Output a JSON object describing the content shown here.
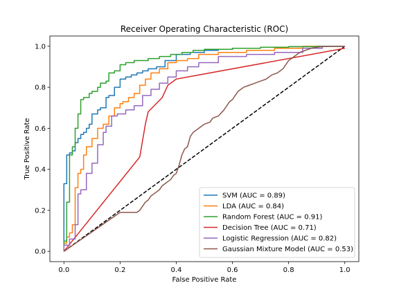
{
  "chart_data": {
    "type": "line",
    "title": "Receiver Operating Characteristic (ROC)",
    "xlabel": "False Positive Rate",
    "ylabel": "True Positive Rate",
    "xlim": [
      -0.05,
      1.05
    ],
    "ylim": [
      -0.05,
      1.05
    ],
    "xticks": [
      0.0,
      0.2,
      0.4,
      0.6,
      0.8,
      1.0
    ],
    "yticks": [
      0.0,
      0.2,
      0.4,
      0.6,
      0.8,
      1.0
    ],
    "xtick_labels": [
      "0.0",
      "0.2",
      "0.4",
      "0.6",
      "0.8",
      "1.0"
    ],
    "ytick_labels": [
      "0.0",
      "0.2",
      "0.4",
      "0.6",
      "0.8",
      "1.0"
    ],
    "legend_position": "lower-right",
    "grid": false,
    "diagonal": {
      "x": [
        0,
        1
      ],
      "y": [
        0,
        1
      ],
      "color": "#000000",
      "style": "dashed"
    },
    "series": [
      {
        "name": "SVM (AUC = 0.89)",
        "color": "#1f77b4",
        "x": [
          0.0,
          0.0,
          0.01,
          0.01,
          0.02,
          0.02,
          0.03,
          0.03,
          0.04,
          0.04,
          0.05,
          0.05,
          0.06,
          0.06,
          0.07,
          0.07,
          0.08,
          0.08,
          0.09,
          0.09,
          0.1,
          0.1,
          0.12,
          0.12,
          0.13,
          0.13,
          0.15,
          0.15,
          0.16,
          0.16,
          0.18,
          0.18,
          0.2,
          0.2,
          0.22,
          0.22,
          0.24,
          0.24,
          0.26,
          0.26,
          0.28,
          0.28,
          0.3,
          0.3,
          0.33,
          0.33,
          0.36,
          0.36,
          0.4,
          0.4,
          0.45,
          0.45,
          0.5,
          0.5,
          0.55,
          0.55,
          0.6,
          0.6,
          0.7,
          0.7,
          0.8,
          0.8,
          0.9,
          0.9,
          1.0
        ],
        "y": [
          0.0,
          0.33,
          0.33,
          0.47,
          0.47,
          0.48,
          0.48,
          0.49,
          0.49,
          0.53,
          0.53,
          0.55,
          0.55,
          0.57,
          0.57,
          0.58,
          0.58,
          0.6,
          0.6,
          0.62,
          0.62,
          0.67,
          0.67,
          0.69,
          0.69,
          0.7,
          0.7,
          0.75,
          0.75,
          0.76,
          0.76,
          0.8,
          0.8,
          0.84,
          0.84,
          0.85,
          0.85,
          0.86,
          0.86,
          0.87,
          0.87,
          0.88,
          0.88,
          0.89,
          0.89,
          0.9,
          0.9,
          0.93,
          0.93,
          0.96,
          0.96,
          0.97,
          0.97,
          0.98,
          0.98,
          0.985,
          0.985,
          0.99,
          0.99,
          0.995,
          0.995,
          0.998,
          0.998,
          1.0,
          1.0
        ]
      },
      {
        "name": "LDA (AUC = 0.84)",
        "color": "#ff7f0e",
        "x": [
          0.0,
          0.0,
          0.01,
          0.01,
          0.02,
          0.02,
          0.03,
          0.03,
          0.04,
          0.04,
          0.05,
          0.05,
          0.06,
          0.06,
          0.07,
          0.07,
          0.08,
          0.08,
          0.1,
          0.1,
          0.12,
          0.12,
          0.14,
          0.14,
          0.16,
          0.16,
          0.18,
          0.18,
          0.2,
          0.2,
          0.21,
          0.21,
          0.23,
          0.23,
          0.25,
          0.25,
          0.27,
          0.27,
          0.29,
          0.29,
          0.31,
          0.31,
          0.34,
          0.34,
          0.37,
          0.37,
          0.4,
          0.4,
          0.44,
          0.44,
          0.48,
          0.48,
          0.55,
          0.55,
          0.65,
          0.65,
          0.75,
          0.75,
          0.85,
          0.85,
          1.0
        ],
        "y": [
          0.0,
          0.04,
          0.04,
          0.07,
          0.07,
          0.09,
          0.09,
          0.13,
          0.13,
          0.31,
          0.31,
          0.38,
          0.38,
          0.4,
          0.4,
          0.47,
          0.47,
          0.51,
          0.51,
          0.55,
          0.55,
          0.6,
          0.6,
          0.62,
          0.62,
          0.66,
          0.66,
          0.7,
          0.7,
          0.72,
          0.72,
          0.73,
          0.73,
          0.75,
          0.75,
          0.77,
          0.77,
          0.81,
          0.81,
          0.84,
          0.84,
          0.87,
          0.87,
          0.89,
          0.89,
          0.92,
          0.92,
          0.93,
          0.93,
          0.94,
          0.94,
          0.96,
          0.96,
          0.97,
          0.97,
          0.98,
          0.98,
          0.99,
          0.99,
          1.0,
          1.0
        ]
      },
      {
        "name": "Random Forest (AUC = 0.91)",
        "color": "#2ca02c",
        "x": [
          0.0,
          0.0,
          0.01,
          0.01,
          0.02,
          0.02,
          0.03,
          0.03,
          0.04,
          0.04,
          0.05,
          0.05,
          0.06,
          0.06,
          0.07,
          0.07,
          0.09,
          0.09,
          0.1,
          0.1,
          0.12,
          0.12,
          0.13,
          0.13,
          0.15,
          0.15,
          0.16,
          0.16,
          0.18,
          0.18,
          0.2,
          0.2,
          0.22,
          0.22,
          0.25,
          0.25,
          0.3,
          0.3,
          0.34,
          0.34,
          0.38,
          0.38,
          0.42,
          0.42,
          0.46,
          0.46,
          0.5,
          0.5,
          0.6,
          0.6,
          0.7,
          0.7,
          0.8,
          0.8,
          0.9,
          0.9,
          1.0
        ],
        "y": [
          0.0,
          0.05,
          0.05,
          0.24,
          0.24,
          0.47,
          0.47,
          0.51,
          0.51,
          0.6,
          0.6,
          0.67,
          0.67,
          0.74,
          0.74,
          0.75,
          0.75,
          0.77,
          0.77,
          0.78,
          0.78,
          0.8,
          0.8,
          0.82,
          0.82,
          0.83,
          0.83,
          0.87,
          0.87,
          0.88,
          0.88,
          0.91,
          0.91,
          0.92,
          0.92,
          0.93,
          0.93,
          0.94,
          0.94,
          0.95,
          0.95,
          0.96,
          0.96,
          0.97,
          0.97,
          0.98,
          0.98,
          0.985,
          0.985,
          0.99,
          0.99,
          0.995,
          0.995,
          0.998,
          0.998,
          1.0,
          1.0
        ]
      },
      {
        "name": "Decision Tree (AUC = 0.71)",
        "color": "#d62728",
        "x": [
          0.0,
          0.27,
          0.29,
          0.3,
          0.35,
          0.37,
          0.4,
          1.0
        ],
        "y": [
          0.0,
          0.46,
          0.62,
          0.68,
          0.75,
          0.81,
          0.84,
          0.99
        ]
      },
      {
        "name": "Logistic Regression (AUC = 0.82)",
        "color": "#9467bd",
        "x": [
          0.0,
          0.0,
          0.02,
          0.02,
          0.04,
          0.04,
          0.05,
          0.05,
          0.06,
          0.06,
          0.08,
          0.08,
          0.1,
          0.1,
          0.12,
          0.12,
          0.14,
          0.14,
          0.15,
          0.15,
          0.17,
          0.17,
          0.19,
          0.19,
          0.22,
          0.22,
          0.25,
          0.25,
          0.28,
          0.28,
          0.31,
          0.31,
          0.34,
          0.34,
          0.37,
          0.37,
          0.4,
          0.4,
          0.44,
          0.44,
          0.48,
          0.48,
          0.55,
          0.55,
          0.65,
          0.65,
          0.75,
          0.75,
          0.85,
          0.85,
          0.92,
          0.92,
          1.0
        ],
        "y": [
          0.0,
          0.03,
          0.03,
          0.06,
          0.06,
          0.13,
          0.13,
          0.28,
          0.28,
          0.3,
          0.3,
          0.38,
          0.38,
          0.43,
          0.43,
          0.52,
          0.52,
          0.58,
          0.58,
          0.61,
          0.61,
          0.66,
          0.66,
          0.67,
          0.67,
          0.69,
          0.69,
          0.71,
          0.71,
          0.76,
          0.76,
          0.79,
          0.79,
          0.82,
          0.82,
          0.85,
          0.85,
          0.88,
          0.88,
          0.9,
          0.9,
          0.92,
          0.92,
          0.95,
          0.95,
          0.96,
          0.96,
          0.97,
          0.97,
          0.99,
          0.99,
          1.0,
          1.0
        ]
      },
      {
        "name": "Gaussian Mixture Model (AUC = 0.53)",
        "color": "#8c564b",
        "x": [
          0.0,
          0.2,
          0.26,
          0.27,
          0.28,
          0.29,
          0.3,
          0.31,
          0.32,
          0.34,
          0.35,
          0.36,
          0.37,
          0.38,
          0.39,
          0.4,
          0.41,
          0.42,
          0.43,
          0.44,
          0.45,
          0.46,
          0.47,
          0.48,
          0.49,
          0.5,
          0.52,
          0.53,
          0.55,
          0.57,
          0.58,
          0.59,
          0.6,
          0.61,
          0.62,
          0.64,
          0.66,
          0.68,
          0.7,
          0.72,
          0.74,
          0.76,
          0.78,
          0.8,
          0.82,
          0.84,
          0.86,
          0.88,
          0.9,
          0.92,
          0.94,
          0.96,
          0.98,
          1.0
        ],
        "y": [
          0.0,
          0.19,
          0.19,
          0.2,
          0.22,
          0.24,
          0.25,
          0.27,
          0.28,
          0.3,
          0.32,
          0.33,
          0.34,
          0.35,
          0.37,
          0.38,
          0.42,
          0.47,
          0.5,
          0.51,
          0.56,
          0.58,
          0.59,
          0.6,
          0.61,
          0.62,
          0.63,
          0.65,
          0.66,
          0.69,
          0.71,
          0.73,
          0.74,
          0.76,
          0.78,
          0.8,
          0.81,
          0.82,
          0.83,
          0.84,
          0.86,
          0.87,
          0.89,
          0.93,
          0.95,
          0.97,
          0.98,
          0.99,
          0.995,
          0.998,
          0.999,
          1.0,
          1.0,
          1.0
        ]
      }
    ]
  }
}
